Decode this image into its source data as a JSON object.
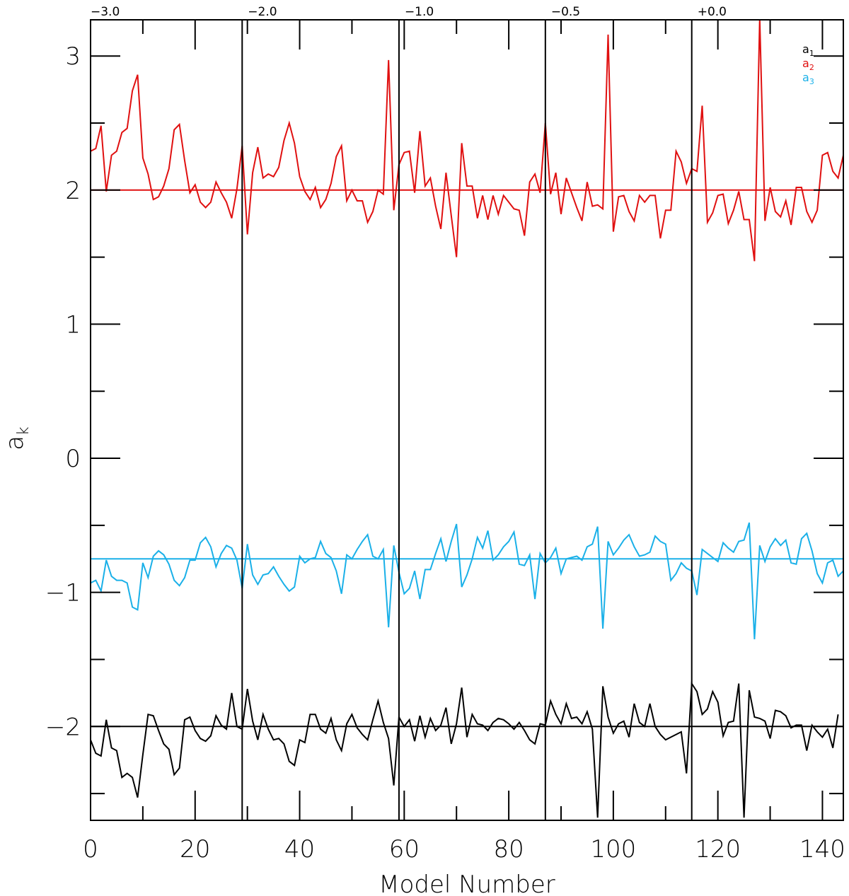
{
  "chart_data": {
    "type": "line",
    "xlabel": "Model Number",
    "ylabel": "a",
    "ylabel_subscript": "k",
    "xlim": [
      0,
      144
    ],
    "ylim": [
      -2.7,
      3.27
    ],
    "x_ticks": [
      0,
      20,
      40,
      60,
      80,
      100,
      120,
      140
    ],
    "y_ticks": [
      -2,
      -1,
      0,
      1,
      2,
      3
    ],
    "grid": false,
    "legend_position": "top-right",
    "vertical_lines": [
      {
        "x": 29,
        "label": "−2.0"
      },
      {
        "x": 59,
        "label": "−1.0"
      },
      {
        "x": 87,
        "label": "−0.5"
      },
      {
        "x": 115,
        "label": "+0.0"
      }
    ],
    "top_corner_label": "−3.0",
    "reference_lines": [
      {
        "series": "a1",
        "y": -2.0
      },
      {
        "series": "a2",
        "y": 2.0
      },
      {
        "series": "a3",
        "y": -0.75
      }
    ],
    "series": [
      {
        "name": "a",
        "subscript": "1",
        "color": "#000000",
        "values": [
          -2.1,
          -2.2,
          -2.22,
          -1.95,
          -2.16,
          -2.18,
          -2.38,
          -2.35,
          -2.38,
          -2.53,
          -2.21,
          -1.91,
          -1.92,
          -2.03,
          -2.13,
          -2.17,
          -2.36,
          -2.31,
          -1.95,
          -1.93,
          -2.03,
          -2.09,
          -2.11,
          -2.07,
          -1.92,
          -1.99,
          -2.02,
          -1.75,
          -2.0,
          -2.02,
          -1.72,
          -1.96,
          -2.1,
          -1.91,
          -2.02,
          -2.1,
          -2.09,
          -2.13,
          -2.26,
          -2.29,
          -2.1,
          -2.12,
          -1.91,
          -1.91,
          -2.02,
          -2.05,
          -1.94,
          -2.1,
          -2.18,
          -1.98,
          -1.91,
          -2.01,
          -2.06,
          -2.1,
          -1.95,
          -1.81,
          -1.97,
          -2.09,
          -2.44,
          -1.93,
          -2.0,
          -1.95,
          -2.11,
          -1.92,
          -2.08,
          -1.94,
          -2.03,
          -1.99,
          -1.86,
          -2.13,
          -1.98,
          -1.71,
          -2.08,
          -1.91,
          -1.98,
          -1.99,
          -2.03,
          -1.97,
          -1.94,
          -1.95,
          -1.98,
          -2.02,
          -1.97,
          -2.03,
          -2.1,
          -2.13,
          -1.98,
          -1.99,
          -1.81,
          -1.91,
          -1.98,
          -1.83,
          -1.94,
          -1.93,
          -1.98,
          -1.89,
          -2.02,
          -2.68,
          -1.7,
          -1.93,
          -2.05,
          -1.98,
          -1.96,
          -2.08,
          -1.83,
          -1.97,
          -2.0,
          -1.83,
          -2.0,
          -2.06,
          -2.1,
          -2.08,
          -2.06,
          -2.04,
          -2.35,
          -1.68,
          -1.74,
          -1.91,
          -1.87,
          -1.74,
          -1.82,
          -2.07,
          -1.97,
          -1.96,
          -1.68,
          -2.68,
          -1.73,
          -1.93,
          -1.94,
          -1.96,
          -2.09,
          -1.88,
          -1.89,
          -1.92,
          -2.01,
          -1.99,
          -1.99,
          -2.18,
          -1.99,
          -2.04,
          -2.08,
          -2.02,
          -2.16,
          -1.91
        ]
      },
      {
        "name": "a",
        "subscript": "2",
        "color": "#e01010",
        "values": [
          2.29,
          2.31,
          2.48,
          1.99,
          2.26,
          2.29,
          2.43,
          2.46,
          2.74,
          2.86,
          2.24,
          2.12,
          1.93,
          1.95,
          2.03,
          2.16,
          2.45,
          2.49,
          2.22,
          1.98,
          2.04,
          1.91,
          1.87,
          1.91,
          2.06,
          1.98,
          1.91,
          1.79,
          2.01,
          2.33,
          1.67,
          2.13,
          2.32,
          2.09,
          2.12,
          2.1,
          2.17,
          2.37,
          2.5,
          2.35,
          2.1,
          1.99,
          1.93,
          2.02,
          1.87,
          1.93,
          2.05,
          2.25,
          2.33,
          1.92,
          2.0,
          1.92,
          1.92,
          1.76,
          1.84,
          2.0,
          1.97,
          2.97,
          1.85,
          2.19,
          2.28,
          2.29,
          1.98,
          2.44,
          2.03,
          2.09,
          1.88,
          1.71,
          2.13,
          1.81,
          1.5,
          2.35,
          2.03,
          2.03,
          1.79,
          1.96,
          1.78,
          1.96,
          1.82,
          1.96,
          1.91,
          1.86,
          1.85,
          1.66,
          2.06,
          2.12,
          1.98,
          2.5,
          1.97,
          2.13,
          1.82,
          2.09,
          1.98,
          1.87,
          1.77,
          2.06,
          1.88,
          1.89,
          1.86,
          3.16,
          1.69,
          1.95,
          1.96,
          1.84,
          1.77,
          1.96,
          1.91,
          1.96,
          1.96,
          1.64,
          1.85,
          1.85,
          2.29,
          2.21,
          2.05,
          2.16,
          2.14,
          2.63,
          1.76,
          1.83,
          1.96,
          1.97,
          1.75,
          1.85,
          1.99,
          1.78,
          1.78,
          1.47,
          3.28,
          1.77,
          2.02,
          1.84,
          1.8,
          1.92,
          1.74,
          2.02,
          2.02,
          1.84,
          1.76,
          1.85,
          2.26,
          2.28,
          2.14,
          2.09,
          2.26,
          2.23,
          2.0
        ]
      },
      {
        "name": "a",
        "subscript": "3",
        "color": "#1ab0e8",
        "values": [
          -0.93,
          -0.91,
          -0.99,
          -0.76,
          -0.88,
          -0.91,
          -0.91,
          -0.93,
          -1.11,
          -1.13,
          -0.78,
          -0.89,
          -0.73,
          -0.69,
          -0.72,
          -0.79,
          -0.91,
          -0.95,
          -0.89,
          -0.76,
          -0.76,
          -0.63,
          -0.59,
          -0.66,
          -0.81,
          -0.71,
          -0.65,
          -0.67,
          -0.76,
          -0.97,
          -0.64,
          -0.87,
          -0.94,
          -0.87,
          -0.86,
          -0.81,
          -0.88,
          -0.94,
          -0.99,
          -0.96,
          -0.73,
          -0.78,
          -0.75,
          -0.74,
          -0.62,
          -0.71,
          -0.74,
          -0.84,
          -1.01,
          -0.72,
          -0.75,
          -0.68,
          -0.62,
          -0.57,
          -0.73,
          -0.75,
          -0.68,
          -1.26,
          -0.65,
          -0.85,
          -1.01,
          -0.97,
          -0.84,
          -1.05,
          -0.83,
          -0.83,
          -0.71,
          -0.6,
          -0.77,
          -0.62,
          -0.49,
          -0.96,
          -0.87,
          -0.75,
          -0.59,
          -0.67,
          -0.54,
          -0.76,
          -0.72,
          -0.66,
          -0.62,
          -0.55,
          -0.79,
          -0.8,
          -0.72,
          -1.05,
          -0.71,
          -0.78,
          -0.74,
          -0.67,
          -0.86,
          -0.75,
          -0.74,
          -0.73,
          -0.76,
          -0.66,
          -0.64,
          -0.51,
          -1.27,
          -0.62,
          -0.72,
          -0.67,
          -0.61,
          -0.57,
          -0.66,
          -0.73,
          -0.72,
          -0.7,
          -0.58,
          -0.62,
          -0.64,
          -0.91,
          -0.86,
          -0.78,
          -0.82,
          -0.84,
          -1.02,
          -0.68,
          -0.71,
          -0.74,
          -0.77,
          -0.63,
          -0.67,
          -0.7,
          -0.62,
          -0.61,
          -0.48,
          -1.35,
          -0.65,
          -0.77,
          -0.66,
          -0.6,
          -0.65,
          -0.61,
          -0.78,
          -0.79,
          -0.6,
          -0.56,
          -0.69,
          -0.86,
          -0.93,
          -0.78,
          -0.76,
          -0.88,
          -0.84,
          -0.75
        ]
      }
    ]
  }
}
